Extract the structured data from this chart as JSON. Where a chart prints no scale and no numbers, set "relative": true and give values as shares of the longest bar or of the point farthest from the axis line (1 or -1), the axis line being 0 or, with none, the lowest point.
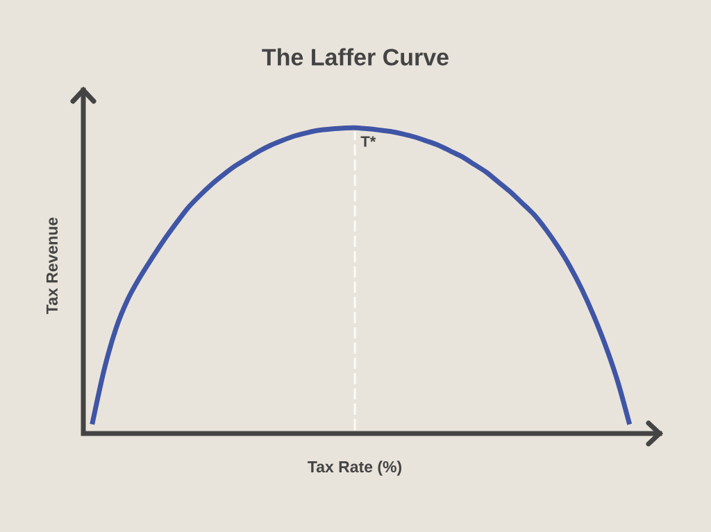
{
  "chart_data": {
    "type": "line",
    "title": "The Laffer Curve",
    "xlabel": "Tax Rate (%)",
    "ylabel": "Tax Revenue",
    "relative": true,
    "categories": [
      null,
      null,
      null,
      null,
      null,
      null,
      null,
      null,
      null,
      null,
      null,
      null,
      null,
      null,
      null,
      null,
      null,
      null,
      null,
      null,
      null,
      null,
      null,
      null,
      null,
      null,
      null,
      null,
      null,
      null,
      null,
      null,
      null,
      null,
      null,
      null,
      null,
      null,
      null,
      null,
      null,
      null,
      null,
      null,
      null,
      null
    ],
    "series": [
      {
        "color": "#3f55a5",
        "values": [
          0.03,
          0.208,
          0.344,
          0.44,
          0.511,
          0.573,
          0.632,
          0.686,
          0.737,
          0.778,
          0.815,
          0.847,
          0.876,
          0.9,
          0.924,
          0.944,
          0.96,
          0.974,
          0.984,
          0.992,
          0.996,
          0.999,
          1.0,
          0.997,
          0.993,
          0.988,
          0.98,
          0.97,
          0.957,
          0.943,
          0.924,
          0.905,
          0.88,
          0.855,
          0.823,
          0.791,
          0.754,
          0.716,
          0.667,
          0.611,
          0.547,
          0.472,
          0.385,
          0.286,
          0.171,
          0.03
        ]
      }
    ],
    "annotations": [
      {
        "text": "T*",
        "y": 1.0
      }
    ]
  }
}
